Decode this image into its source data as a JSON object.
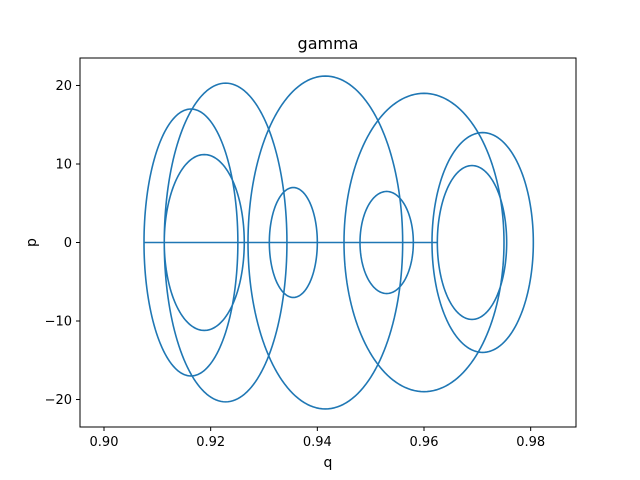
{
  "chart_data": {
    "type": "line",
    "title": "gamma",
    "xlabel": "q",
    "ylabel": "p",
    "xlim": [
      0.8955,
      0.8885
    ],
    "xlim_note": "",
    "x_range": [
      0.8955,
      0.9885
    ],
    "y_range": [
      -23.5,
      23.5
    ],
    "x_ticks": [
      0.9,
      0.92,
      0.94,
      0.96,
      0.98
    ],
    "x_tick_labels": [
      "0.90",
      "0.92",
      "0.94",
      "0.96",
      "0.98"
    ],
    "y_ticks": [
      -20,
      -10,
      0,
      10,
      20
    ],
    "y_tick_labels": [
      "−20",
      "−10",
      "0",
      "10",
      "20"
    ],
    "grid": false,
    "series": [
      {
        "color": "#1f77b4",
        "loops": [
          {
            "center_q": 0.9163,
            "amp_q": 0.0088,
            "amp_p": 17.0,
            "turns": 1
          },
          {
            "center_q": 0.9228,
            "amp_q": 0.0115,
            "amp_p": 20.3,
            "turns": 1
          },
          {
            "center_q": 0.9188,
            "amp_q": 0.0075,
            "amp_p": 11.2,
            "turns": 1
          },
          {
            "center_q": 0.9355,
            "amp_q": 0.0045,
            "amp_p": 7.0,
            "turns": 1
          },
          {
            "center_q": 0.9415,
            "amp_q": 0.0145,
            "amp_p": 21.2,
            "turns": 1
          },
          {
            "center_q": 0.953,
            "amp_q": 0.005,
            "amp_p": 6.5,
            "turns": 1
          },
          {
            "center_q": 0.96,
            "amp_q": 0.015,
            "amp_p": 19.0,
            "turns": 1
          },
          {
            "center_q": 0.971,
            "amp_q": 0.0095,
            "amp_p": 14.0,
            "turns": 1
          },
          {
            "center_q": 0.969,
            "amp_q": 0.0065,
            "amp_p": 9.8,
            "turns": 1
          }
        ],
        "points": [
          [
            0.9,
            0.5
          ],
          [
            0.9003,
            5
          ],
          [
            0.9015,
            9.5
          ],
          [
            0.904,
            13.2
          ],
          [
            0.908,
            15.8
          ],
          [
            0.913,
            16.9
          ],
          [
            0.918,
            16.4
          ],
          [
            0.9225,
            14.2
          ],
          [
            0.926,
            10.5
          ],
          [
            0.928,
            5.5
          ],
          [
            0.9287,
            0
          ],
          [
            0.928,
            -5.5
          ],
          [
            0.9258,
            -10.2
          ],
          [
            0.922,
            -13.3
          ],
          [
            0.917,
            -13.8
          ],
          [
            0.912,
            -12
          ],
          [
            0.908,
            -8.5
          ],
          [
            0.9058,
            -4.2
          ],
          [
            0.905,
            0
          ],
          [
            0.9058,
            5
          ],
          [
            0.9085,
            11
          ],
          [
            0.9125,
            15.8
          ],
          [
            0.918,
            19.2
          ],
          [
            0.9245,
            20.3
          ],
          [
            0.931,
            19
          ],
          [
            0.936,
            15
          ],
          [
            0.9395,
            9
          ],
          [
            0.9412,
            3
          ],
          [
            0.9414,
            0
          ],
          [
            0.9405,
            -5
          ],
          [
            0.938,
            -11
          ],
          [
            0.933,
            -16.5
          ],
          [
            0.9265,
            -19.8
          ],
          [
            0.919,
            -20.5
          ],
          [
            0.912,
            -19
          ],
          [
            0.9068,
            -15.5
          ],
          [
            0.904,
            -9.5
          ],
          [
            0.9035,
            -3
          ],
          [
            0.904,
            3
          ],
          [
            0.9075,
            8
          ],
          [
            0.9125,
            10.7
          ],
          [
            0.918,
            11.2
          ],
          [
            0.923,
            9.5
          ],
          [
            0.9262,
            5.5
          ],
          [
            0.9272,
            0
          ],
          [
            0.9268,
            -4
          ],
          [
            0.925,
            -7
          ],
          [
            0.9225,
            -8.2
          ],
          [
            0.92,
            -7.5
          ],
          [
            0.918,
            -5
          ],
          [
            0.917,
            -2
          ],
          [
            0.9168,
            1
          ],
          [
            0.9173,
            3
          ],
          [
            0.9185,
            4.5
          ]
        ]
      }
    ]
  }
}
